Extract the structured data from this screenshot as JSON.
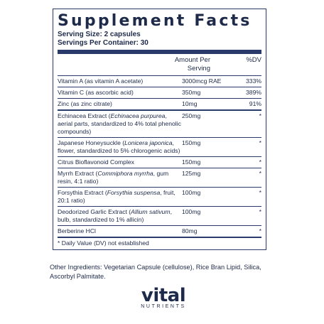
{
  "panel": {
    "title": "Supplement Facts",
    "serving_size": "Serving Size: 2 capsules",
    "servings_per_container": "Servings Per Container: 30",
    "col_amount": "Amount Per Serving",
    "col_dv": "%DV",
    "rows": [
      {
        "name": "Vitamin A (as vitamin A acetate)",
        "amount": "3000mcg RAE",
        "dv": "333%"
      },
      {
        "name": "Vitamin C (as ascorbic acid)",
        "amount": "350mg",
        "dv": "389%"
      },
      {
        "name": "Zinc (as zinc citrate)",
        "amount": "10mg",
        "dv": "91%"
      },
      {
        "name_main": "Echinacea Extract (",
        "name_italic": "Echinacea purpurea",
        "name_rest": ", aerial parts, standardized to 4% total phenolic compounds)",
        "amount": "250mg",
        "dv": "*"
      },
      {
        "name_main": "Japanese Honeysuckle (",
        "name_italic": "Lonicera japonica",
        "name_rest": ", flower, standardized to 5% chlorogenic acids)",
        "amount": "150mg",
        "dv": "*"
      },
      {
        "name": "Citrus Bioflavonoid Complex",
        "amount": "150mg",
        "dv": "*"
      },
      {
        "name_main": "Myrrh Extract (",
        "name_italic": "Commiphora myrrha",
        "name_rest": ", gum resin, 4:1 ratio)",
        "amount": "125mg",
        "dv": "*"
      },
      {
        "name_main": "Forsythia Extract (",
        "name_italic": "Forsythia suspensa",
        "name_rest": ", fruit, 20:1 ratio)",
        "amount": "100mg",
        "dv": "*"
      },
      {
        "name_main": "Deodorized Garlic Extract (",
        "name_italic": "Allium sativum",
        "name_rest": ", bulb, standardized to 1% allicin)",
        "amount": "100mg",
        "dv": "*"
      },
      {
        "name": "Berberine HCl",
        "amount": "80mg",
        "dv": "*"
      }
    ],
    "footnote": "* Daily Value (DV) not established"
  },
  "other_ingredients": "Other Ingredients: Vegetarian Capsule (cellulose), Rice Bran Lipid, Silica, Ascorbyl Palmitate.",
  "brand": {
    "word": "vital",
    "sub": "NUTRIENTS"
  },
  "colors": {
    "text": "#1e2a4a",
    "rule": "#2a3a6a"
  }
}
